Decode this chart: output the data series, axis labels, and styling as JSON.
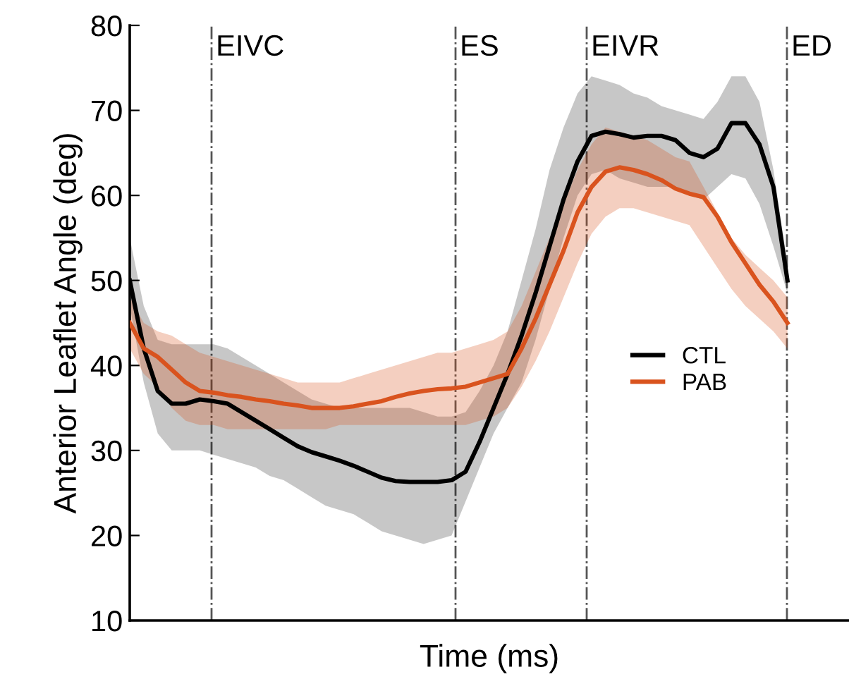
{
  "chart_data": {
    "type": "line",
    "xlabel": "Time (ms)",
    "ylabel": "Anterior Leaflet Angle (deg)",
    "categories": [
      null,
      null,
      null,
      null,
      null,
      null,
      null,
      null,
      null,
      null,
      null,
      null,
      null,
      null,
      null,
      null,
      null,
      null,
      null,
      null,
      null,
      null,
      null,
      null,
      null,
      null,
      null,
      null,
      null,
      null,
      null,
      null,
      null,
      null,
      null,
      null,
      null,
      null,
      null,
      null,
      null,
      null,
      null,
      null,
      null,
      null,
      null,
      null
    ],
    "series": [
      {
        "name": "CTL",
        "color": "#000000",
        "values": [
          50,
          42,
          37,
          35.5,
          35.5,
          36,
          35.8,
          35.5,
          34.5,
          33.5,
          32.5,
          31.5,
          30.5,
          29.8,
          29.3,
          28.8,
          28.2,
          27.5,
          26.8,
          26.4,
          26.3,
          26.3,
          26.3,
          26.5,
          27.5,
          31,
          35,
          39,
          43.5,
          48.5,
          54,
          59.5,
          64,
          67,
          67.5,
          67.2,
          66.8,
          67,
          67,
          66.5,
          65,
          64.5,
          65.5,
          68.5,
          68.5,
          66,
          61,
          50
        ],
        "lower": [
          47,
          38,
          32,
          30,
          30,
          30,
          29.5,
          29,
          28.5,
          28,
          27,
          26.5,
          25.5,
          24.5,
          23.5,
          23,
          22.5,
          21.5,
          20.5,
          20,
          19.5,
          19,
          19.5,
          20,
          24,
          28,
          32,
          35,
          38,
          43,
          49,
          55,
          60,
          62.5,
          63,
          62,
          61.5,
          61,
          61,
          61,
          60,
          59.5,
          61,
          62.5,
          62,
          59,
          54,
          48.5
        ],
        "upper": [
          55,
          47,
          43,
          42.5,
          42.5,
          42.5,
          42.5,
          42,
          41,
          40,
          39,
          38,
          37,
          36,
          35.5,
          35,
          35,
          35,
          35,
          35,
          35,
          34.5,
          34,
          34,
          34.5,
          37,
          40,
          44,
          50,
          56,
          63,
          68,
          72,
          74,
          73.5,
          73,
          72,
          71.5,
          70.5,
          70,
          69.5,
          69,
          71,
          74,
          74,
          71,
          63,
          52
        ]
      },
      {
        "name": "PAB",
        "color": "#d9531e",
        "values": [
          45,
          42,
          41,
          39.5,
          38,
          37,
          36.8,
          36.5,
          36.3,
          36,
          35.8,
          35.5,
          35.3,
          35,
          35,
          35,
          35.2,
          35.5,
          35.8,
          36.3,
          36.7,
          37,
          37.2,
          37.3,
          37.5,
          38,
          38.5,
          39,
          42,
          45.5,
          49.5,
          53.5,
          58,
          61,
          62.8,
          63.3,
          63,
          62.5,
          61.8,
          60.8,
          60.2,
          59.8,
          57.5,
          54.5,
          52,
          49.5,
          47.5,
          45
        ],
        "lower": [
          42,
          39,
          37.5,
          35,
          33.5,
          33,
          33,
          32.5,
          32.5,
          32.5,
          32.5,
          32.5,
          32.5,
          32.5,
          32.5,
          33,
          33,
          33,
          33,
          33,
          33,
          33,
          33,
          33,
          33,
          33.5,
          34,
          35,
          37.5,
          40.5,
          44,
          48,
          52,
          55.5,
          57.5,
          58.5,
          58.5,
          58,
          57.5,
          57,
          56.5,
          54,
          51.5,
          49,
          47,
          45.5,
          44,
          42
        ],
        "upper": [
          48,
          45,
          44,
          43.5,
          42.5,
          41.5,
          41,
          40.5,
          40,
          39.5,
          39,
          38.5,
          38,
          38,
          38,
          38,
          38.5,
          39,
          39.5,
          40,
          40.5,
          41,
          41.5,
          41.5,
          42,
          42.5,
          43,
          44,
          47,
          51,
          55,
          59,
          63,
          66,
          68,
          67.5,
          67,
          66.5,
          65.5,
          64.5,
          64,
          61,
          58,
          55,
          53,
          51.5,
          50,
          48
        ]
      }
    ],
    "ylim": [
      10,
      80
    ],
    "yticks": [
      10,
      20,
      30,
      40,
      50,
      60,
      70,
      80
    ],
    "tick_labels": "y",
    "grid": false,
    "legend": "right",
    "line_style": "solid",
    "marker": "none",
    "annotations": [
      "EIVC",
      "ES",
      "EIVR",
      "ED"
    ]
  }
}
